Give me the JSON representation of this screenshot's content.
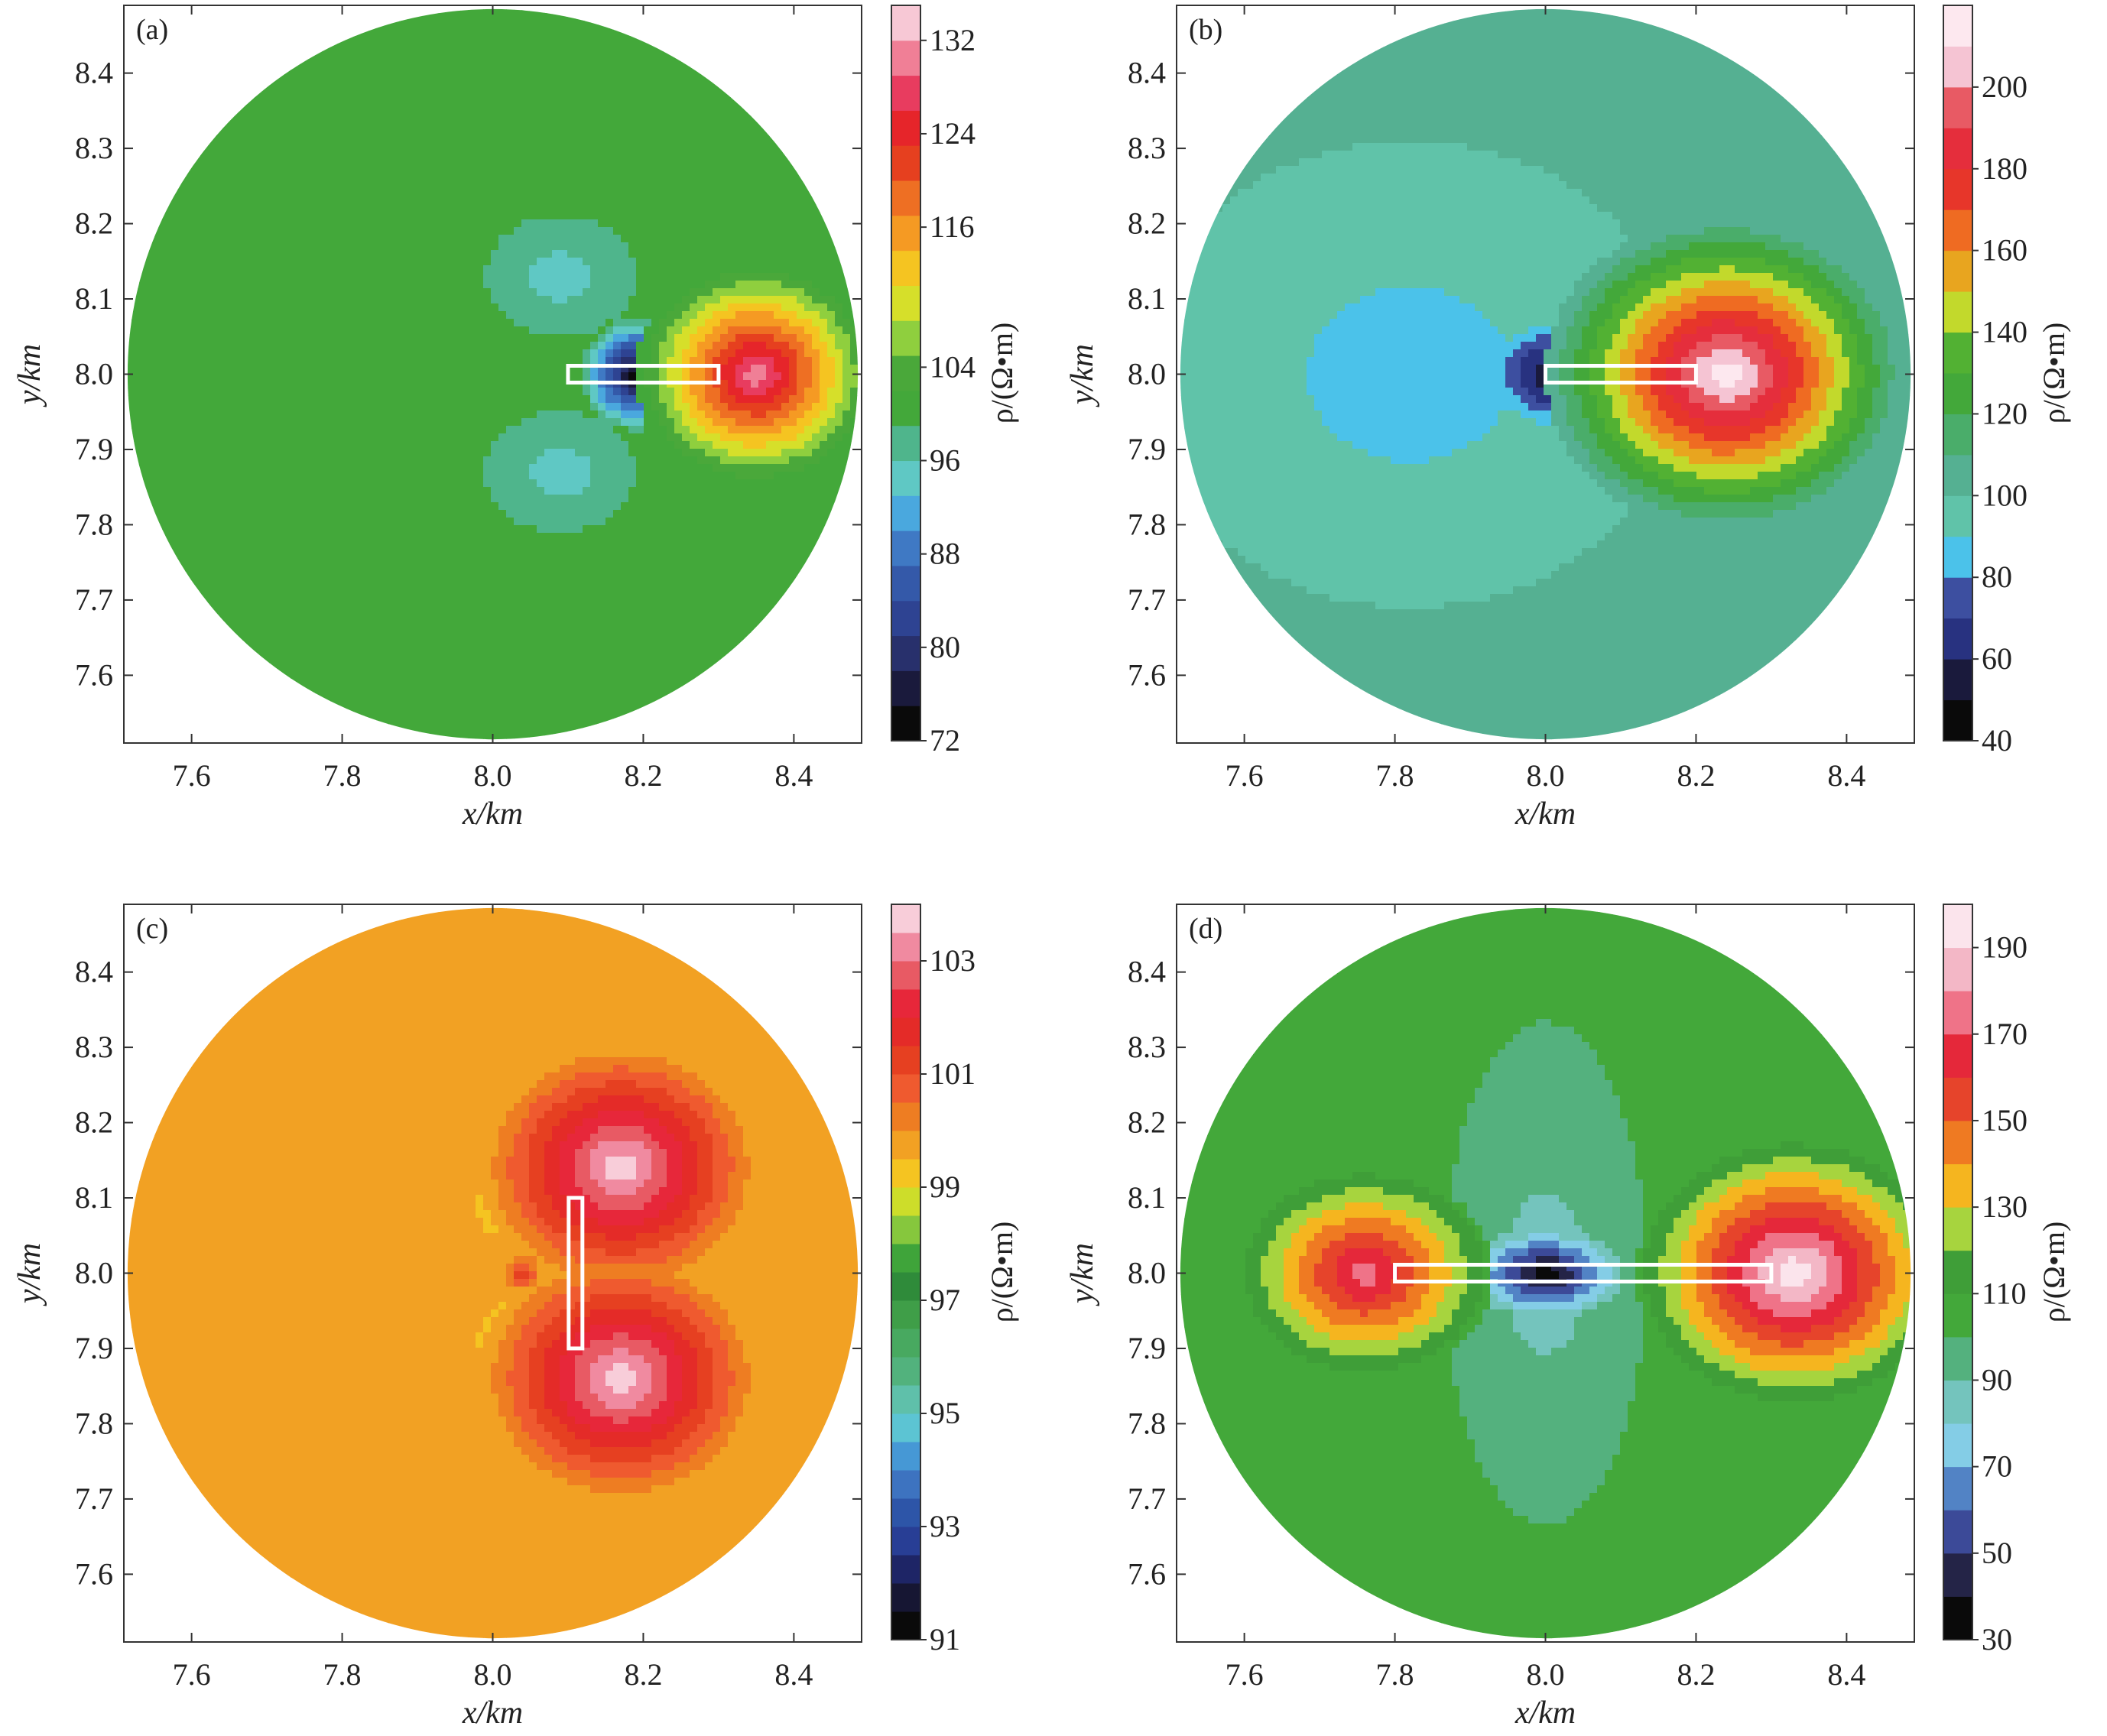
{
  "chart_data": [
    {
      "type": "heatmap",
      "panel_label": "(a)",
      "xlabel": "x/km",
      "ylabel": "y/km",
      "xlim": [
        7.51,
        8.49
      ],
      "ylim": [
        7.51,
        8.49
      ],
      "xticks": [
        "7.6",
        "7.8",
        "8.0",
        "8.2",
        "8.4"
      ],
      "yticks": [
        "7.6",
        "7.7",
        "7.8",
        "7.9",
        "8.0",
        "8.1",
        "8.2",
        "8.3",
        "8.4"
      ],
      "domain": {
        "shape": "circle",
        "center": [
          8.0,
          8.0
        ],
        "radius": 0.485
      },
      "source": {
        "x1": 8.1,
        "x2": 8.3,
        "y": 8.0
      },
      "background": 99,
      "features": [
        {
          "x": 8.19,
          "y": 8.0,
          "rx": 0.072,
          "ry": 0.075,
          "min": 72
        },
        {
          "x": 8.09,
          "y": 8.13,
          "rx": 0.1,
          "ry": 0.08,
          "min": 94
        },
        {
          "x": 8.09,
          "y": 7.87,
          "rx": 0.1,
          "ry": 0.08,
          "min": 94
        },
        {
          "x": 8.35,
          "y": 8.0,
          "rx": 0.16,
          "ry": 0.15,
          "max": 132
        }
      ],
      "colorbar": {
        "label": "ρ/(Ω•m)",
        "range": [
          72,
          135
        ],
        "ticks": [
          "72",
          "80",
          "88",
          "96",
          "104",
          "116",
          "124",
          "132"
        ],
        "levels": [
          72,
          75,
          78,
          81,
          84,
          87,
          90,
          93,
          96,
          99,
          102,
          105,
          108,
          111,
          114,
          117,
          120,
          123,
          126,
          129,
          132,
          135
        ],
        "colors": [
          "#0a0a0a",
          "#1a1a3c",
          "#28306c",
          "#2e4392",
          "#3459a9",
          "#3f79c4",
          "#4aa8de",
          "#5fc8c4",
          "#4fb58c",
          "#43a83a",
          "#4aa83a",
          "#8fcf3e",
          "#d6df2a",
          "#f5c421",
          "#f59a23",
          "#ee6f23",
          "#e6401f",
          "#e6252a",
          "#e83c5f",
          "#f07f96",
          "#f7c8d5",
          "#ffffff"
        ]
      }
    },
    {
      "type": "heatmap",
      "panel_label": "(b)",
      "xlabel": "x/km",
      "ylabel": "y/km",
      "xlim": [
        7.51,
        8.49
      ],
      "ylim": [
        7.51,
        8.49
      ],
      "xticks": [
        "7.6",
        "7.8",
        "8.0",
        "8.2",
        "8.4"
      ],
      "yticks": [
        "7.6",
        "7.7",
        "7.8",
        "7.9",
        "8.0",
        "8.1",
        "8.2",
        "8.3",
        "8.4"
      ],
      "domain": {
        "shape": "circle",
        "center": [
          8.0,
          8.0
        ],
        "radius": 0.485
      },
      "source": {
        "x1": 8.0,
        "x2": 8.2,
        "y": 8.0
      },
      "background": 100,
      "features": [
        {
          "x": 8.02,
          "y": 8.0,
          "rx": 0.11,
          "ry": 0.08,
          "min": 40
        },
        {
          "x": 7.82,
          "y": 8.0,
          "rx": 0.36,
          "ry": 0.31,
          "min": 84
        },
        {
          "x": 8.24,
          "y": 8.0,
          "rx": 0.24,
          "ry": 0.21,
          "max": 220
        }
      ],
      "colorbar": {
        "label": "ρ/(Ω•m)",
        "range": [
          40,
          220
        ],
        "ticks": [
          "40",
          "60",
          "80",
          "100",
          "120",
          "140",
          "160",
          "180",
          "200"
        ],
        "levels": [
          40,
          50,
          60,
          70,
          80,
          90,
          100,
          110,
          120,
          130,
          140,
          150,
          160,
          170,
          180,
          190,
          200,
          210,
          220
        ],
        "colors": [
          "#0a0a0a",
          "#1a1a3c",
          "#283280",
          "#3d4fa0",
          "#4bc2ea",
          "#60c3a9",
          "#55b092",
          "#4aad6a",
          "#43a83a",
          "#52b133",
          "#c2d92c",
          "#e8a51f",
          "#ef6b22",
          "#e7362a",
          "#e52e3c",
          "#e85a64",
          "#f5c4d3",
          "#fde8ef",
          "#ffffff"
        ]
      }
    },
    {
      "type": "heatmap",
      "panel_label": "(c)",
      "xlabel": "x/km",
      "ylabel": "y/km",
      "xlim": [
        7.51,
        8.49
      ],
      "ylim": [
        7.51,
        8.49
      ],
      "xticks": [
        "7.6",
        "7.8",
        "8.0",
        "8.2",
        "8.4"
      ],
      "yticks": [
        "7.6",
        "7.7",
        "7.8",
        "7.9",
        "8.0",
        "8.1",
        "8.2",
        "8.3",
        "8.4"
      ],
      "domain": {
        "shape": "circle",
        "center": [
          8.0,
          8.0
        ],
        "radius": 0.485
      },
      "source": {
        "x": 8.11,
        "y1": 7.9,
        "y2": 8.1
      },
      "background": 99.5,
      "features": [
        {
          "x": 8.12,
          "y": 8.0,
          "rx": 0.045,
          "ry": 0.11,
          "min": 91
        },
        {
          "x": 8.06,
          "y": 8.09,
          "rx": 0.08,
          "ry": 0.06,
          "min": 97
        },
        {
          "x": 8.06,
          "y": 7.91,
          "rx": 0.08,
          "ry": 0.06,
          "min": 97
        },
        {
          "x": 8.17,
          "y": 8.14,
          "rx": 0.19,
          "ry": 0.17,
          "max": 104
        },
        {
          "x": 8.17,
          "y": 7.86,
          "rx": 0.19,
          "ry": 0.17,
          "max": 104
        },
        {
          "x": 8.04,
          "y": 8.0,
          "rx": 0.03,
          "ry": 0.03,
          "max": 101.5
        }
      ],
      "colorbar": {
        "label": "ρ/(Ω•m)",
        "range": [
          91,
          104
        ],
        "ticks": [
          "91",
          "93",
          "95",
          "97",
          "99",
          "101",
          "103"
        ],
        "levels": [
          91,
          91.5,
          92,
          92.5,
          93,
          93.5,
          94,
          94.5,
          95,
          95.5,
          96,
          96.5,
          97,
          97.5,
          98,
          98.5,
          99,
          99.5,
          100,
          100.5,
          101,
          101.5,
          102,
          102.5,
          103,
          103.5,
          104
        ],
        "colors": [
          "#0a0a0a",
          "#161633",
          "#1e2566",
          "#283e95",
          "#2d55a8",
          "#3d73c0",
          "#4698d5",
          "#5cc4d3",
          "#5fc0aa",
          "#52b27d",
          "#48a960",
          "#3f9e48",
          "#2f8b3a",
          "#3fa43a",
          "#86c73d",
          "#cddd2a",
          "#f5c421",
          "#f2a123",
          "#ee7d22",
          "#ef5a2f",
          "#e64021",
          "#e42b28",
          "#e7273a",
          "#e85a64",
          "#f08aa0",
          "#f8cdd9",
          "#ffffff"
        ]
      }
    },
    {
      "type": "heatmap",
      "panel_label": "(d)",
      "xlabel": "x/km",
      "ylabel": "y/km",
      "xlim": [
        7.51,
        8.49
      ],
      "ylim": [
        7.51,
        8.49
      ],
      "xticks": [
        "7.6",
        "7.8",
        "8.0",
        "8.2",
        "8.4"
      ],
      "yticks": [
        "7.6",
        "7.7",
        "7.8",
        "7.9",
        "8.0",
        "8.1",
        "8.2",
        "8.3",
        "8.4"
      ],
      "domain": {
        "shape": "circle",
        "center": [
          8.0,
          8.0
        ],
        "radius": 0.485
      },
      "source": {
        "x1": 7.8,
        "x2": 8.3,
        "y": 8.0
      },
      "background": 105,
      "features": [
        {
          "x": 8.0,
          "y": 8.0,
          "rx": 0.2,
          "ry": 0.5,
          "min": 90
        },
        {
          "x": 8.0,
          "y": 8.0,
          "rx": 0.12,
          "ry": 0.24,
          "min": 78
        },
        {
          "x": 8.0,
          "y": 8.0,
          "rx": 0.13,
          "ry": 0.075,
          "min": 30
        },
        {
          "x": 7.76,
          "y": 8.0,
          "rx": 0.17,
          "ry": 0.14,
          "max": 178
        },
        {
          "x": 8.33,
          "y": 8.0,
          "rx": 0.21,
          "ry": 0.18,
          "max": 200
        }
      ],
      "colorbar": {
        "label": "ρ/(Ω•m)",
        "range": [
          30,
          200
        ],
        "ticks": [
          "30",
          "50",
          "70",
          "90",
          "110",
          "130",
          "150",
          "170",
          "190"
        ],
        "levels": [
          30,
          40,
          50,
          60,
          70,
          80,
          90,
          100,
          110,
          120,
          130,
          140,
          150,
          160,
          170,
          180,
          190,
          200
        ],
        "colors": [
          "#0a0a0a",
          "#242447",
          "#3c4a98",
          "#5283c5",
          "#84cde6",
          "#74c4bd",
          "#54b17e",
          "#43a83a",
          "#3f9e38",
          "#a7d43e",
          "#f5b51f",
          "#ef7a22",
          "#e6442b",
          "#e5283a",
          "#ef7388",
          "#f3b7c6",
          "#fbe4ec",
          "#ffffff"
        ]
      }
    }
  ]
}
